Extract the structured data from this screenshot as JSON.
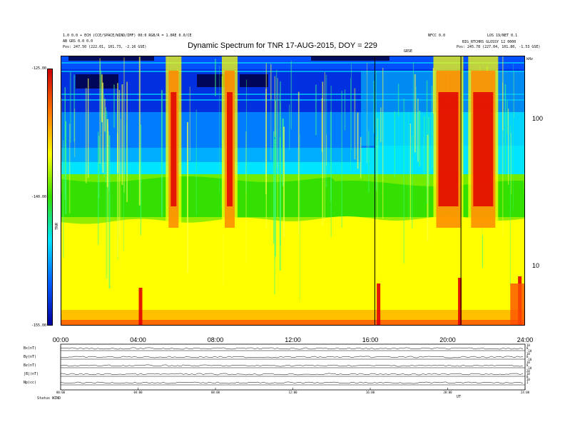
{
  "chart_data": {
    "type": "heatmap",
    "title": "Dynamic Spectrum for TNR 17-AUG-2015, DOY = 229",
    "colorbar": {
      "label": "TNR",
      "ticks": [
        "-125.00",
        "-140.00",
        "-155.00"
      ],
      "range": [
        -155,
        -125
      ],
      "colors": [
        "#cc0000",
        "#ff7700",
        "#ffff00",
        "#33e000",
        "#00e5ff",
        "#0060ff",
        "#0000a0"
      ]
    },
    "x_ticks": [
      "00:00",
      "04:00",
      "08:00",
      "12:00",
      "16:00",
      "20:00",
      "24:00"
    ],
    "xlim_hours": [
      0,
      24
    ],
    "y_ticks_right": [
      "100",
      "10"
    ],
    "y_scale": "log",
    "y_unit": "kHz",
    "vertical_markers_hours": [
      16.2,
      20.65
    ],
    "intense_bursts_hours": [
      5.8,
      8.7,
      20.0,
      21.8
    ],
    "panel_series": [
      {
        "label": "Bx(nT)",
        "ticks": [
          "10",
          "0",
          "-10"
        ]
      },
      {
        "label": "By(nT)",
        "ticks": [
          "10",
          "0",
          "-10"
        ]
      },
      {
        "label": "Bz(nT)",
        "ticks": [
          "10",
          "0",
          "-10"
        ]
      },
      {
        "label": "|B|(nT)",
        "ticks": [
          "20",
          "10",
          "0"
        ]
      },
      {
        "label": "Np(cc)",
        "ticks": [
          "10",
          "1"
        ]
      }
    ],
    "panel_x_ticks": [
      "00:00",
      "04:00",
      "08:00",
      "12:00",
      "16:00",
      "20:00",
      "24:00"
    ]
  },
  "header": {
    "left_line1": "1.0 0.0 + ECH (CCE/SPACE/WIND/IMF) 00:0 RGB/R = 1.0RE 0.0/CE",
    "left_line2": "AB GRS 0.0 0.0",
    "left_line3": "Pos:   247.50 (222.01, 101.73, -2.16 GSE)",
    "right_line1": "NFCC 0.0",
    "right_line1b": "LOS 19/NET 0.1",
    "right_line2": "BIG_RTCHRS  GLOSSY 12 0000",
    "right_line3": "Pos:   245.78 (227.04, 101.80, -1.53 GSE)",
    "mid_label": "GRSE",
    "corner_label": "kHz"
  },
  "footer": {
    "label": "Status",
    "value": "WIND",
    "unit_label": "UT"
  }
}
